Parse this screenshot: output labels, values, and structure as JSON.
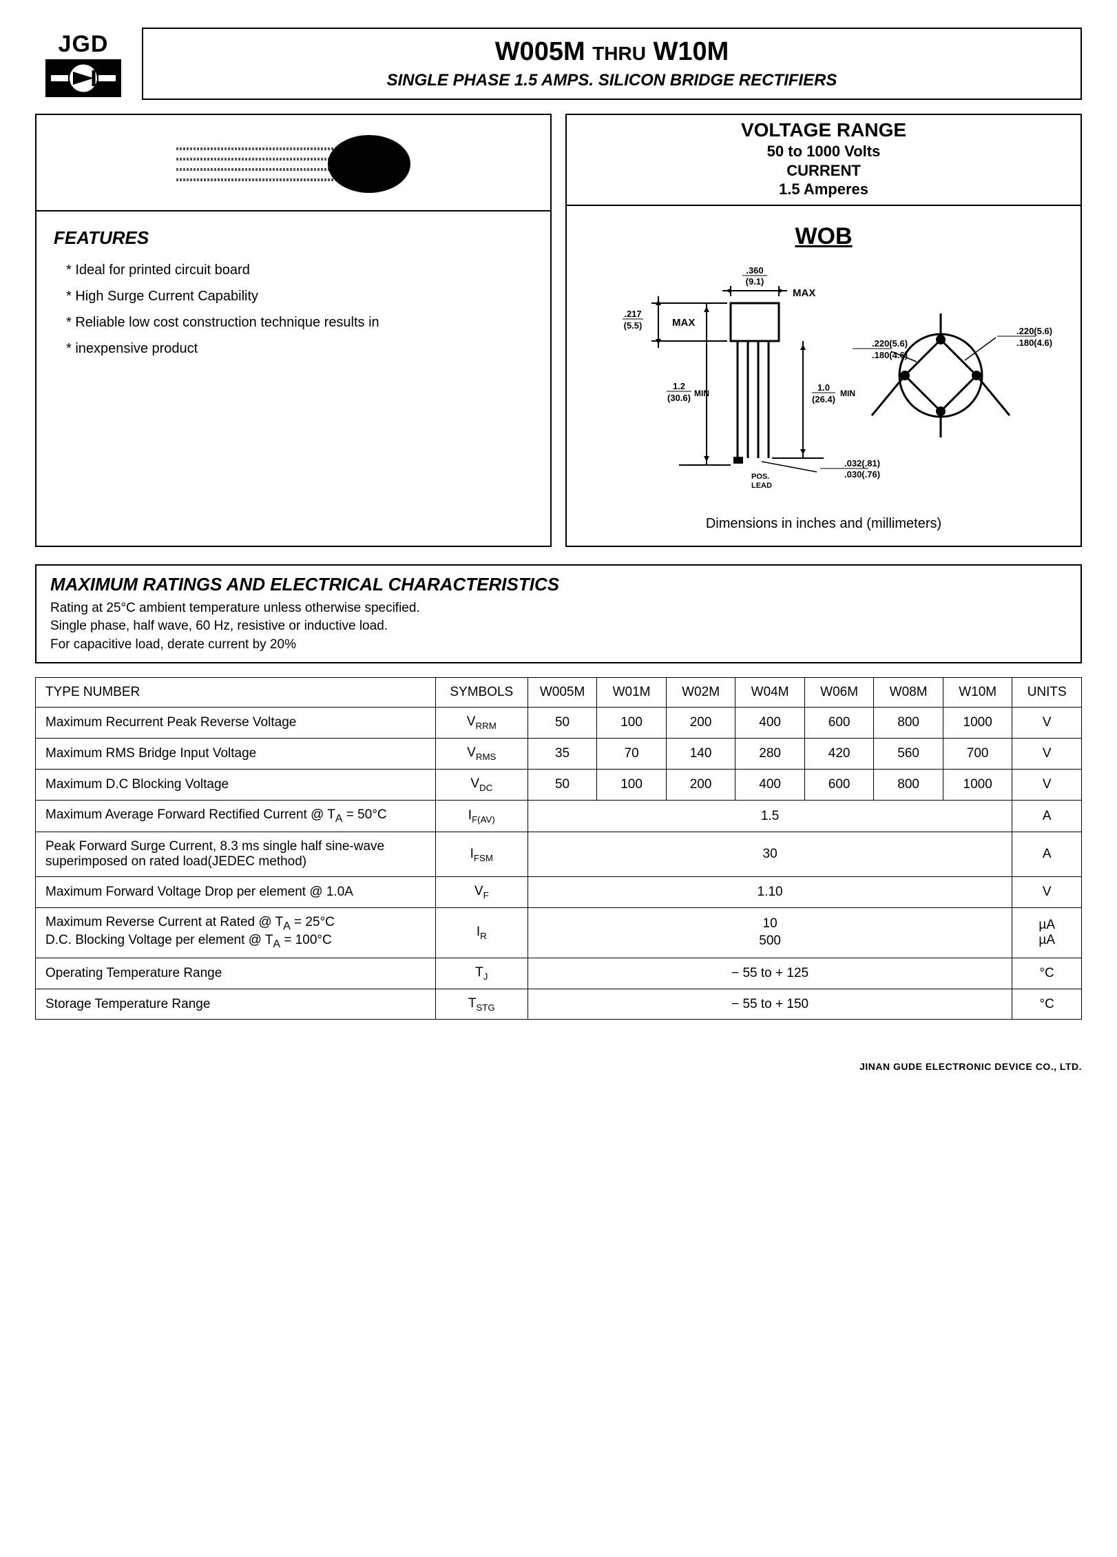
{
  "logo": {
    "text": "JGD"
  },
  "title": {
    "main_prefix": "W005M",
    "thru": "THRU",
    "main_suffix": "W10M",
    "sub": "SINGLE PHASE 1.5 AMPS. SILICON BRIDGE RECTIFIERS"
  },
  "features": {
    "heading": "FEATURES",
    "items": [
      "Ideal for printed circuit board",
      "High Surge Current Capability",
      "Reliable low cost construction technique results in",
      "inexpensive product"
    ]
  },
  "voltage_range": {
    "title": "VOLTAGE RANGE",
    "line1": "50 to 1000 Volts",
    "line2": "CURRENT",
    "line3": "1.5 Amperes"
  },
  "package": {
    "name": "WOB",
    "dim_note": "Dimensions in inches and (millimeters)",
    "labels": {
      "w_max_top": ".360",
      "w_max_bot": "(9.1)",
      "max1": "MAX",
      "h_top": ".217",
      "h_bot": "(5.5)",
      "max2": "MAX",
      "lead_len_top": "1.2",
      "lead_len_bot": "(30.6)",
      "min1": "MIN",
      "body_len_top": "1.0",
      "body_len_bot": "(26.4)",
      "min2": "MIN",
      "lead_dia_top": ".032(.81)",
      "lead_dia_bot": ".030(.76)",
      "pos_lead": "POS.\nLEAD",
      "circ1_top": ".220(5.6)",
      "circ1_bot": ".180(4.6)",
      "circ2_top": ".220(5.6)",
      "circ2_bot": ".180(4.6)"
    }
  },
  "ratings": {
    "heading": "MAXIMUM RATINGS AND ELECTRICAL CHARACTERISTICS",
    "note1": "Rating at 25°C ambient temperature unless otherwise specified.",
    "note2": "Single phase, half wave, 60 Hz, resistive or inductive load.",
    "note3": "For capacitive load, derate current by 20%"
  },
  "table": {
    "headers": {
      "type": "TYPE NUMBER",
      "symbols": "SYMBOLS",
      "cols": [
        "W005M",
        "W01M",
        "W02M",
        "W04M",
        "W06M",
        "W08M",
        "W10M"
      ],
      "units": "UNITS"
    },
    "rows": [
      {
        "param": "Maximum Recurrent Peak Reverse Voltage",
        "sym_html": "V<span class='sub'>RRM</span>",
        "vals": [
          "50",
          "100",
          "200",
          "400",
          "600",
          "800",
          "1000"
        ],
        "units": "V"
      },
      {
        "param": "Maximum RMS Bridge Input Voltage",
        "sym_html": "V<span class='sub'>RMS</span>",
        "vals": [
          "35",
          "70",
          "140",
          "280",
          "420",
          "560",
          "700"
        ],
        "units": "V"
      },
      {
        "param": "Maximum D.C Blocking Voltage",
        "sym_html": "V<span class='sub'>DC</span>",
        "vals": [
          "50",
          "100",
          "200",
          "400",
          "600",
          "800",
          "1000"
        ],
        "units": "V"
      },
      {
        "param": "Maximum Average Forward Rectified Current @ T<sub>A</sub> = 50°C",
        "sym_html": "I<span class='sub'>F(AV)</span>",
        "span": "1.5",
        "units": "A"
      },
      {
        "param": "Peak Forward Surge Current, 8.3 ms single half sine-wave superimposed on rated load(JEDEC method)",
        "sym_html": "I<span class='sub'>FSM</span>",
        "span": "30",
        "units": "A"
      },
      {
        "param": "Maximum Forward Voltage Drop per element @ 1.0A",
        "sym_html": "V<span class='sub'>F</span>",
        "span": "1.10",
        "units": "V"
      },
      {
        "param": "Maximum Reverse Current at Rated @ T<sub>A</sub> = 25°C<br>D.C. Blocking Voltage per element @ T<sub>A</sub> = 100°C",
        "sym_html": "I<span class='sub'>R</span>",
        "span_html": "<div class='dual-line'>10<br>500</div>",
        "units_html": "µA<br>µA"
      },
      {
        "param": "Operating Temperature Range",
        "sym_html": "T<span class='sub'>J</span>",
        "span": "− 55 to + 125",
        "units": "°C"
      },
      {
        "param": "Storage Temperature Range",
        "sym_html": "T<span class='sub'>STG</span>",
        "span": "− 55 to + 150",
        "units": "°C"
      }
    ]
  },
  "footer": "JINAN GUDE ELECTRONIC DEVICE CO., LTD."
}
